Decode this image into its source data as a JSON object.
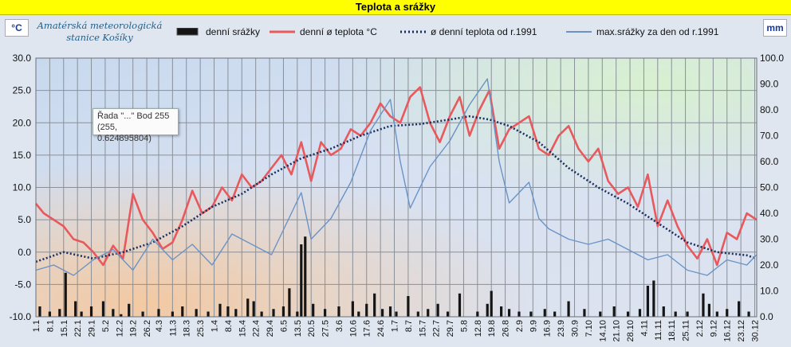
{
  "header": {
    "title": "Teplota a srážky"
  },
  "units": {
    "left": "°C",
    "right": "mm"
  },
  "station": {
    "line1": "Amatérská meteorologická",
    "line2": "stanice Košíky"
  },
  "tooltip": {
    "line1": "Řada \"...\" Bod 255",
    "line2": "(255, 0.624895804)"
  },
  "colors": {
    "precip": "#151515",
    "temp": "#e8595e",
    "avg_temp": "#1b2f5e",
    "max_precip": "#6a93c6"
  },
  "chart_data": {
    "type": "line",
    "title": "Teplota a srážky",
    "xlabel": "",
    "y_left": {
      "label": "°C",
      "lim": [
        -10,
        30
      ],
      "ticks": [
        "30.0",
        "25.0",
        "20.0",
        "15.0",
        "10.0",
        "5.0",
        "0.0",
        "-5.0",
        "-10.0"
      ]
    },
    "y_right": {
      "label": "mm",
      "lim": [
        0,
        100
      ],
      "ticks": [
        "100.0",
        "90.0",
        "80.0",
        "70.0",
        "60.0",
        "50.0",
        "40.0",
        "30.0",
        "20.0",
        "10.0",
        "0.0"
      ]
    },
    "x_ticks": [
      "1.1",
      "8.1",
      "15.1",
      "22.1",
      "29.1",
      "5.2",
      "12.2",
      "19.2",
      "26.2",
      "4.3",
      "11.3",
      "18.3",
      "25.3",
      "1.4",
      "8.4",
      "15.4",
      "22.4",
      "29.4",
      "6.5",
      "13.5",
      "20.5",
      "27.5",
      "3.6",
      "10.6",
      "17.6",
      "24.6",
      "1.7",
      "8.7",
      "15.7",
      "22.7",
      "29.7",
      "5.8",
      "12.8",
      "19.8",
      "26.8",
      "2.9",
      "9.9",
      "16.9",
      "23.9",
      "30.9",
      "7.10",
      "14.10",
      "21.10",
      "28.10",
      "4.11",
      "11.11",
      "18.11",
      "25.11",
      "2.12",
      "9.12",
      "16.12",
      "23.12",
      "30.12"
    ],
    "x_day_indices": [
      1,
      8,
      15,
      22,
      29,
      36,
      43,
      50,
      57,
      63,
      70,
      77,
      84,
      91,
      98,
      105,
      112,
      119,
      126,
      133,
      140,
      147,
      154,
      161,
      168,
      175,
      182,
      189,
      196,
      203,
      210,
      217,
      224,
      231,
      238,
      245,
      252,
      259,
      266,
      273,
      280,
      287,
      294,
      301,
      308,
      315,
      322,
      329,
      336,
      343,
      350,
      357,
      364
    ],
    "legend": [
      "denní srážky",
      "denní ø teplota °C",
      "ø denní teplota od r.1991",
      "max.srážky za den od r.1991"
    ],
    "grid": true,
    "series": [
      {
        "name": "denní ø teplota °C",
        "axis": "left",
        "x": [
          1,
          5,
          10,
          15,
          20,
          25,
          30,
          35,
          40,
          45,
          50,
          55,
          60,
          65,
          70,
          75,
          80,
          85,
          90,
          95,
          100,
          105,
          110,
          115,
          120,
          125,
          130,
          135,
          140,
          145,
          150,
          155,
          160,
          165,
          170,
          175,
          180,
          185,
          190,
          195,
          200,
          205,
          210,
          215,
          220,
          225,
          230,
          235,
          240,
          245,
          250,
          255,
          260,
          265,
          270,
          275,
          280,
          285,
          290,
          295,
          300,
          305,
          310,
          315,
          320,
          325,
          330,
          335,
          340,
          345,
          350,
          355,
          360,
          365
        ],
        "values": [
          7.5,
          6.0,
          5.0,
          4.0,
          2.0,
          1.5,
          0.0,
          -2.0,
          1.0,
          -1.0,
          9.0,
          5.0,
          3.0,
          0.5,
          1.5,
          5.0,
          9.5,
          6.0,
          7.0,
          10.0,
          8.0,
          12.0,
          10.0,
          11.0,
          13.0,
          15.0,
          12.0,
          17.0,
          11.0,
          17.0,
          15.0,
          16.0,
          19.0,
          18.0,
          20.0,
          23.0,
          21.0,
          20.0,
          24.0,
          25.5,
          20.0,
          17.0,
          21.0,
          24.0,
          18.0,
          22.0,
          25.0,
          16.0,
          19.0,
          20.0,
          21.0,
          16.0,
          15.0,
          18.0,
          19.5,
          16.0,
          14.0,
          16.0,
          11.0,
          9.0,
          10.0,
          7.0,
          12.0,
          4.0,
          8.0,
          4.0,
          1.0,
          -1.0,
          2.0,
          -2.0,
          3.0,
          2.0,
          6.0,
          5.0
        ]
      },
      {
        "name": "ø denní teplota od r.1991",
        "axis": "left",
        "x": [
          1,
          15,
          30,
          45,
          60,
          75,
          90,
          105,
          120,
          135,
          150,
          165,
          180,
          195,
          210,
          220,
          230,
          240,
          255,
          270,
          285,
          300,
          315,
          330,
          345,
          360,
          365
        ],
        "values": [
          -1.5,
          0.0,
          -1.0,
          0.0,
          1.5,
          4.0,
          7.0,
          9.0,
          12.0,
          14.5,
          16.0,
          18.0,
          19.5,
          19.8,
          20.5,
          21.0,
          20.5,
          19.5,
          17.0,
          13.0,
          10.0,
          7.5,
          4.5,
          1.5,
          0.0,
          -0.5,
          -1.0
        ]
      },
      {
        "name": "max.srážky za den od r.1991",
        "axis": "right",
        "x": [
          1,
          10,
          20,
          30,
          40,
          50,
          60,
          70,
          80,
          90,
          100,
          110,
          120,
          130,
          135,
          140,
          150,
          160,
          165,
          170,
          180,
          185,
          190,
          200,
          210,
          220,
          229,
          235,
          240,
          250,
          255,
          260,
          270,
          280,
          290,
          300,
          310,
          320,
          330,
          340,
          350,
          360,
          365
        ],
        "values": [
          18,
          20,
          16,
          22,
          26,
          18,
          30,
          22,
          28,
          20,
          32,
          28,
          24,
          40,
          48,
          30,
          38,
          52,
          62,
          72,
          84,
          60,
          42,
          58,
          68,
          82,
          92,
          60,
          44,
          52,
          38,
          34,
          30,
          28,
          30,
          26,
          22,
          24,
          18,
          16,
          22,
          20,
          24
        ]
      },
      {
        "name": "denní srážky",
        "axis": "right",
        "type": "bar",
        "x": [
          3,
          8,
          13,
          16,
          21,
          24,
          29,
          35,
          40,
          44,
          48,
          55,
          63,
          70,
          75,
          82,
          88,
          94,
          98,
          102,
          108,
          111,
          115,
          121,
          126,
          129,
          133,
          135,
          137,
          141,
          147,
          154,
          161,
          164,
          168,
          172,
          176,
          180,
          183,
          189,
          194,
          199,
          204,
          209,
          215,
          224,
          229,
          231,
          236,
          240,
          245,
          251,
          258,
          263,
          270,
          278,
          286,
          293,
          300,
          306,
          310,
          313,
          318,
          324,
          330,
          338,
          341,
          345,
          350,
          356,
          361
        ],
        "values": [
          4,
          2,
          3,
          17,
          6,
          2,
          4,
          6,
          3,
          1,
          5,
          2,
          3,
          2,
          4,
          3,
          2,
          5,
          4,
          3,
          7,
          6,
          2,
          3,
          4,
          11,
          2,
          28,
          31,
          5,
          3,
          4,
          6,
          2,
          5,
          9,
          3,
          4,
          2,
          8,
          2,
          3,
          5,
          2,
          9,
          2,
          5,
          10,
          4,
          3,
          2,
          2,
          3,
          2,
          6,
          3,
          2,
          4,
          2,
          3,
          12,
          14,
          4,
          2,
          2,
          9,
          5,
          2,
          3,
          6,
          2
        ]
      }
    ]
  }
}
